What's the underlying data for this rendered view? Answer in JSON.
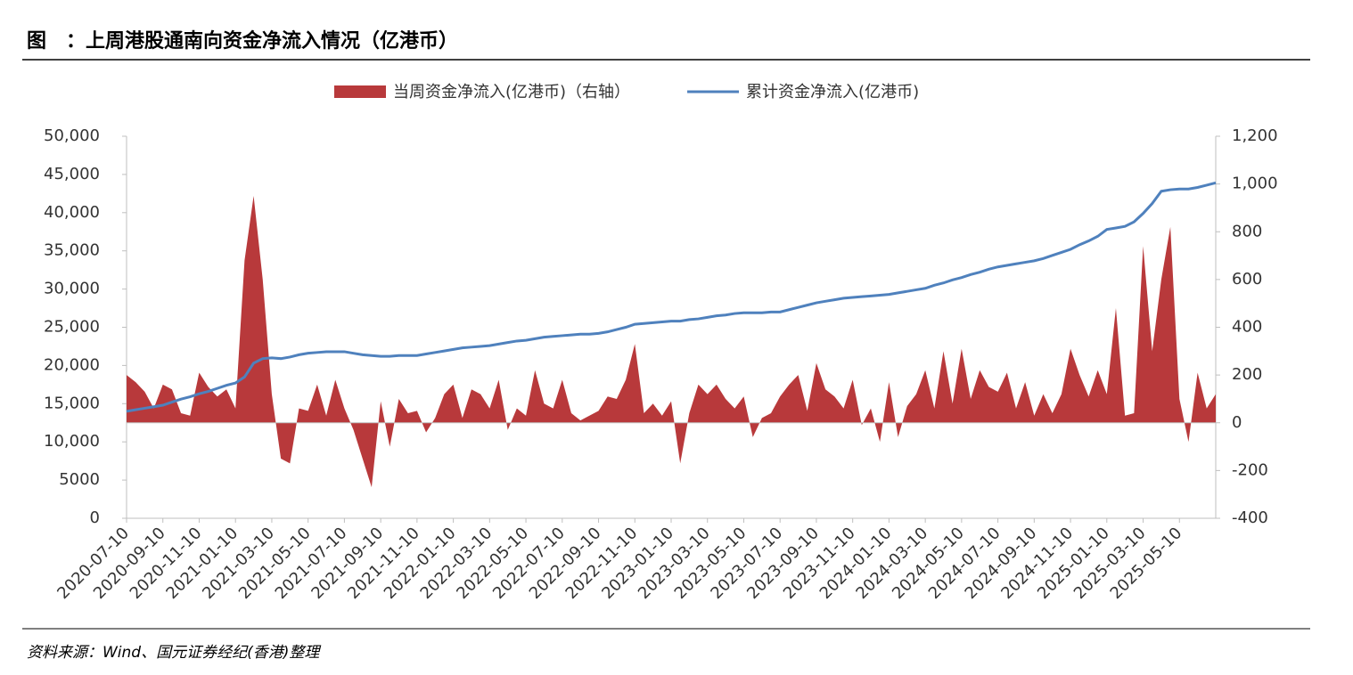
{
  "chart_data": {
    "type": "area-line",
    "title": "图　：上周港股通南向资金净流入情况（亿港币）",
    "source": "资料来源：Wind、国元证券经纪(香港)整理",
    "categories": [
      "2020-07-10",
      null,
      null,
      null,
      "2020-09-10",
      null,
      null,
      null,
      "2020-11-10",
      null,
      null,
      null,
      "2021-01-10",
      null,
      null,
      null,
      "2021-03-10",
      null,
      null,
      null,
      "2021-05-10",
      null,
      null,
      null,
      "2021-07-10",
      null,
      null,
      null,
      "2021-09-10",
      null,
      null,
      null,
      "2021-11-10",
      null,
      null,
      null,
      "2022-01-10",
      null,
      null,
      null,
      "2022-03-10",
      null,
      null,
      null,
      "2022-05-10",
      null,
      null,
      null,
      "2022-07-10",
      null,
      null,
      null,
      "2022-09-10",
      null,
      null,
      null,
      "2022-11-10",
      null,
      null,
      null,
      "2023-01-10",
      null,
      null,
      null,
      "2023-03-10",
      null,
      null,
      null,
      "2023-05-10",
      null,
      null,
      null,
      "2023-07-10",
      null,
      null,
      null,
      "2023-09-10",
      null,
      null,
      null,
      "2023-11-10",
      null,
      null,
      null,
      "2024-01-10",
      null,
      null,
      null,
      "2024-03-10",
      null,
      null,
      null,
      "2024-05-10",
      null,
      null,
      null,
      "2024-07-10",
      null,
      null,
      null,
      "2024-09-10",
      null,
      null,
      null,
      "2024-11-10",
      null,
      null,
      null,
      "2025-01-10",
      null,
      null,
      null,
      "2025-03-10",
      null,
      null,
      null,
      "2025-05-10",
      null,
      null,
      null,
      null
    ],
    "series": [
      {
        "name": "当周资金净流入(亿港币)（右轴）",
        "kind": "area",
        "axis": "y2",
        "color": "#b8393b",
        "values": [
          200,
          170,
          130,
          60,
          160,
          140,
          40,
          30,
          210,
          150,
          110,
          140,
          60,
          680,
          950,
          600,
          120,
          -150,
          -170,
          60,
          50,
          160,
          30,
          180,
          60,
          -30,
          -150,
          -270,
          90,
          -100,
          100,
          40,
          50,
          -40,
          20,
          120,
          160,
          20,
          140,
          120,
          60,
          180,
          -30,
          60,
          30,
          220,
          80,
          60,
          180,
          40,
          10,
          30,
          50,
          110,
          100,
          180,
          330,
          40,
          80,
          30,
          90,
          -170,
          40,
          160,
          120,
          160,
          100,
          60,
          110,
          -60,
          20,
          40,
          110,
          160,
          200,
          50,
          250,
          140,
          110,
          60,
          180,
          -10,
          60,
          -80,
          170,
          -60,
          70,
          120,
          220,
          60,
          300,
          80,
          310,
          100,
          220,
          150,
          130,
          210,
          60,
          170,
          30,
          120,
          40,
          120,
          310,
          200,
          110,
          220,
          120,
          480,
          30,
          40,
          740,
          300,
          600,
          820,
          100,
          -80,
          210,
          60,
          120
        ]
      },
      {
        "name": "累计资金净流入(亿港币)",
        "kind": "line",
        "color": "#4f81bd",
        "values": [
          14000,
          14200,
          14400,
          14600,
          14800,
          15200,
          15600,
          15900,
          16300,
          16600,
          17000,
          17400,
          17700,
          18500,
          20300,
          20900,
          21000,
          20900,
          21100,
          21400,
          21600,
          21700,
          21800,
          21800,
          21800,
          21600,
          21400,
          21300,
          21200,
          21200,
          21300,
          21300,
          21300,
          21500,
          21700,
          21900,
          22100,
          22300,
          22400,
          22500,
          22600,
          22800,
          23000,
          23200,
          23300,
          23500,
          23700,
          23800,
          23900,
          24000,
          24100,
          24100,
          24200,
          24400,
          24700,
          25000,
          25400,
          25500,
          25600,
          25700,
          25800,
          25800,
          26000,
          26100,
          26300,
          26500,
          26600,
          26800,
          26900,
          26900,
          26900,
          27000,
          27000,
          27300,
          27600,
          27900,
          28200,
          28400,
          28600,
          28800,
          28900,
          29000,
          29100,
          29200,
          29300,
          29500,
          29700,
          29900,
          30100,
          30500,
          30800,
          31200,
          31500,
          31900,
          32200,
          32600,
          32900,
          33100,
          33300,
          33500,
          33700,
          34000,
          34400,
          34800,
          35200,
          35800,
          36300,
          36900,
          37800,
          38000,
          38200,
          38800,
          39900,
          41200,
          42800,
          43000,
          43100,
          43100,
          43300,
          43600,
          43900
        ]
      }
    ],
    "ylim": [
      0,
      50000
    ],
    "yticks": [
      0,
      5000,
      {
        "value": 10000,
        "label": "10,000"
      },
      {
        "value": 15000,
        "label": "15,000"
      },
      {
        "value": 20000,
        "label": "20,000"
      },
      {
        "value": 25000,
        "label": "25,000"
      },
      {
        "value": 30000,
        "label": "30,000"
      },
      {
        "value": 35000,
        "label": "35,000"
      },
      {
        "value": 40000,
        "label": "40,000"
      },
      {
        "value": 45000,
        "label": "45,000"
      },
      {
        "value": 50000,
        "label": "50,000"
      }
    ],
    "y2lim": [
      -400,
      1200
    ],
    "y2ticks": [
      -400,
      -200,
      0,
      200,
      400,
      600,
      800,
      {
        "value": 1000,
        "label": "1,000"
      },
      {
        "value": 1200,
        "label": "1,200"
      }
    ],
    "legend": "top"
  }
}
